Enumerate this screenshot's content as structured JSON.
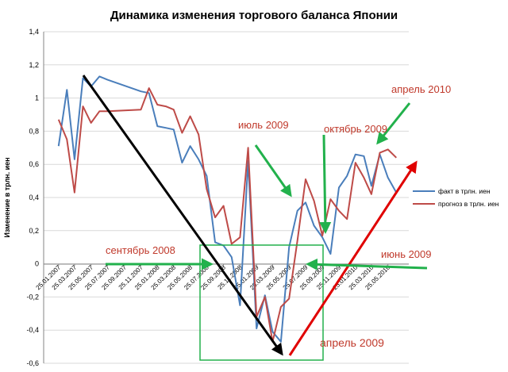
{
  "chart_data": {
    "type": "line",
    "title": "Динамика изменения торгового баланса Японии",
    "ylabel": "Изменение в трлн. иен",
    "xlabel": "",
    "ylim": [
      -0.6,
      1.4
    ],
    "yticks": [
      "-0,6",
      "-0,4",
      "-0,2",
      "0",
      "0,2",
      "0,4",
      "0,6",
      "0,8",
      "1",
      "1,2",
      "1,4"
    ],
    "ytick_values": [
      -0.6,
      -0.4,
      -0.2,
      0,
      0.2,
      0.4,
      0.6,
      0.8,
      1.0,
      1.2,
      1.4
    ],
    "grid": "horizontal",
    "legend_position": "right",
    "x_tick_labels": [
      "25.01.2007",
      "25.03.2007",
      "25.05.2007",
      "25.07.2007",
      "25.09.2007",
      "25.11.2007",
      "25.01.2008",
      "25.03.2008",
      "25.05.2008",
      "25.07.2008",
      "25.09.2008",
      "25.11.2008",
      "25.01.2009",
      "25.03.2009",
      "25.05.2009",
      "25.07.2009",
      "25.09.2009",
      "25.11.2009",
      "25.01.2010",
      "25.03.2010",
      "25.05.2010"
    ],
    "series": [
      {
        "name": "факт в трлн. иен",
        "color": "#4a7ebb",
        "x": [
          "2007-01-25",
          "2007-02-25",
          "2007-03-25",
          "2007-04-25",
          "2007-05-25",
          "2007-06-25",
          "2007-07-25",
          "2007-11-25",
          "2007-12-25",
          "2008-01-25",
          "2008-02-25",
          "2008-03-25",
          "2008-04-25",
          "2008-05-25",
          "2008-06-25",
          "2008-07-25",
          "2008-08-25",
          "2008-09-25",
          "2008-10-25",
          "2008-11-25",
          "2008-12-25",
          "2009-01-25",
          "2009-02-25",
          "2009-03-25",
          "2009-04-25",
          "2009-05-25",
          "2009-06-25",
          "2009-07-25",
          "2009-08-25",
          "2009-09-25",
          "2009-10-25",
          "2009-11-25",
          "2009-12-25",
          "2010-01-25",
          "2010-02-25",
          "2010-03-25",
          "2010-04-25",
          "2010-05-25",
          "2010-06-25"
        ],
        "values": [
          0.71,
          1.05,
          0.63,
          1.12,
          1.07,
          1.13,
          1.11,
          1.04,
          1.03,
          0.83,
          0.82,
          0.81,
          0.61,
          0.71,
          0.63,
          0.53,
          0.13,
          0.11,
          0.04,
          -0.25,
          0.62,
          -0.39,
          -0.19,
          -0.41,
          -0.47,
          0.1,
          0.32,
          0.37,
          0.23,
          0.16,
          0.06,
          0.46,
          0.53,
          0.66,
          0.65,
          0.47,
          0.66,
          0.52,
          0.43
        ]
      },
      {
        "name": "прогноз в трлн. иен",
        "color": "#be4b48",
        "x": [
          "2007-01-25",
          "2007-02-25",
          "2007-03-25",
          "2007-04-25",
          "2007-05-25",
          "2007-06-25",
          "2007-07-25",
          "2007-11-25",
          "2007-12-25",
          "2008-01-25",
          "2008-02-25",
          "2008-03-25",
          "2008-04-25",
          "2008-05-25",
          "2008-06-25",
          "2008-07-25",
          "2008-08-25",
          "2008-09-25",
          "2008-10-25",
          "2008-11-25",
          "2008-12-25",
          "2009-01-25",
          "2009-02-25",
          "2009-03-25",
          "2009-04-25",
          "2009-05-25",
          "2009-06-25",
          "2009-07-25",
          "2009-08-25",
          "2009-09-25",
          "2009-10-25",
          "2009-11-25",
          "2009-12-25",
          "2010-01-25",
          "2010-02-25",
          "2010-03-25",
          "2010-04-25",
          "2010-05-25",
          "2010-06-25"
        ],
        "values": [
          0.87,
          0.75,
          0.43,
          0.95,
          0.85,
          0.92,
          0.92,
          0.93,
          1.06,
          0.96,
          0.95,
          0.93,
          0.79,
          0.89,
          0.78,
          0.45,
          0.28,
          0.35,
          0.12,
          0.16,
          0.7,
          -0.32,
          -0.2,
          -0.47,
          -0.26,
          -0.21,
          0.14,
          0.51,
          0.38,
          0.17,
          0.39,
          0.32,
          0.27,
          0.61,
          0.52,
          0.42,
          0.67,
          0.69,
          0.64
        ]
      }
    ],
    "annotations": [
      {
        "text": "сентябрь 2008",
        "color": "#c0392b"
      },
      {
        "text": "июль 2009",
        "color": "#c0392b"
      },
      {
        "text": "октябрь 2009",
        "color": "#c0392b"
      },
      {
        "text": "апрель 2010",
        "color": "#c0392b"
      },
      {
        "text": "июнь 2009",
        "color": "#c0392b"
      },
      {
        "text": "апрель 2009",
        "color": "#c0392b"
      }
    ],
    "overlays": {
      "trend_down_color": "#000000",
      "trend_up_color": "#e00000",
      "arrow_color": "#22b14c",
      "box_color": "#22b14c"
    }
  }
}
